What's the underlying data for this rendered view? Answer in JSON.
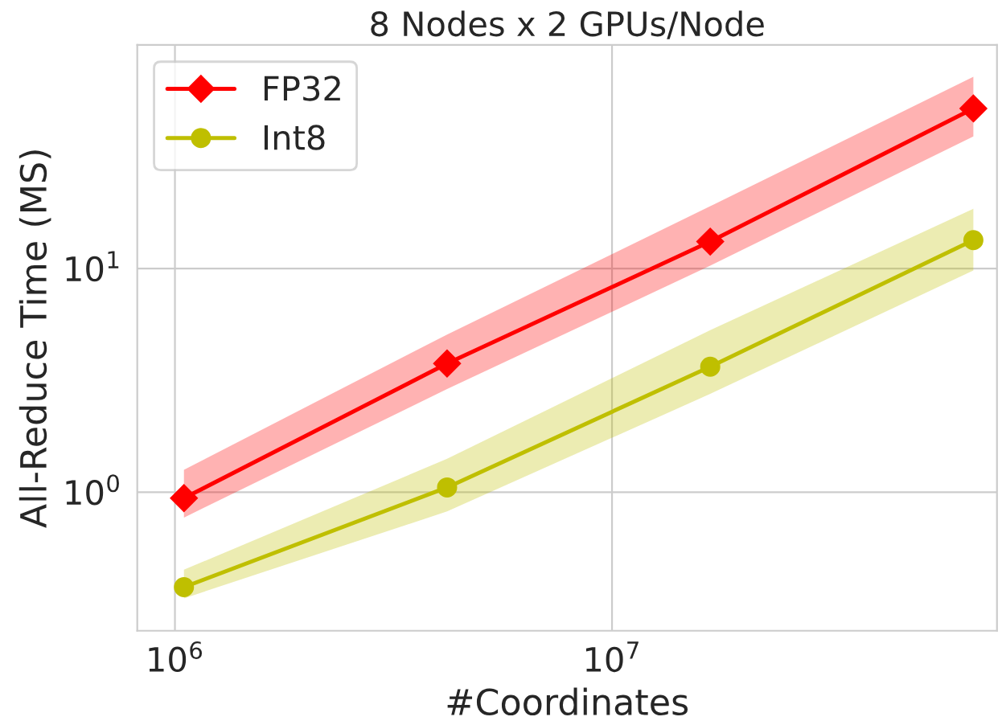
{
  "chart_data": {
    "type": "line",
    "title": "8 Nodes x 2 GPUs/Node",
    "xlabel": "#Coordinates",
    "ylabel": "All-Reduce Time (MS)",
    "x": [
      1048576,
      4194304,
      16777216,
      67108864
    ],
    "series": [
      {
        "name": "FP32",
        "color": "#ff0000",
        "values": [
          0.94,
          3.76,
          13.2,
          52
        ],
        "lower": [
          0.77,
          2.89,
          10.3,
          39
        ],
        "upper": [
          1.26,
          5.07,
          19,
          72
        ],
        "marker": "diamond"
      },
      {
        "name": "Int8",
        "color": "#bfbf00",
        "values": [
          0.376,
          1.05,
          3.64,
          13.4
        ],
        "lower": [
          0.335,
          0.82,
          2.75,
          9.8
        ],
        "upper": [
          0.45,
          1.41,
          5.3,
          18.5
        ],
        "marker": "circle"
      }
    ],
    "log": "xy",
    "xlim": [
      820000,
      76000000
    ],
    "ylim": [
      0.24,
      100
    ],
    "xticks": [
      {
        "value": 1000000,
        "label": "10$^{6}$"
      },
      {
        "value": 10000000,
        "label": "10$^{7}$"
      }
    ],
    "yticks": [
      {
        "value": 1,
        "label": "10$^{0}$"
      },
      {
        "value": 10,
        "label": "10$^{1}$"
      }
    ],
    "grid": true,
    "legend": "top left",
    "line_style": "solid"
  }
}
